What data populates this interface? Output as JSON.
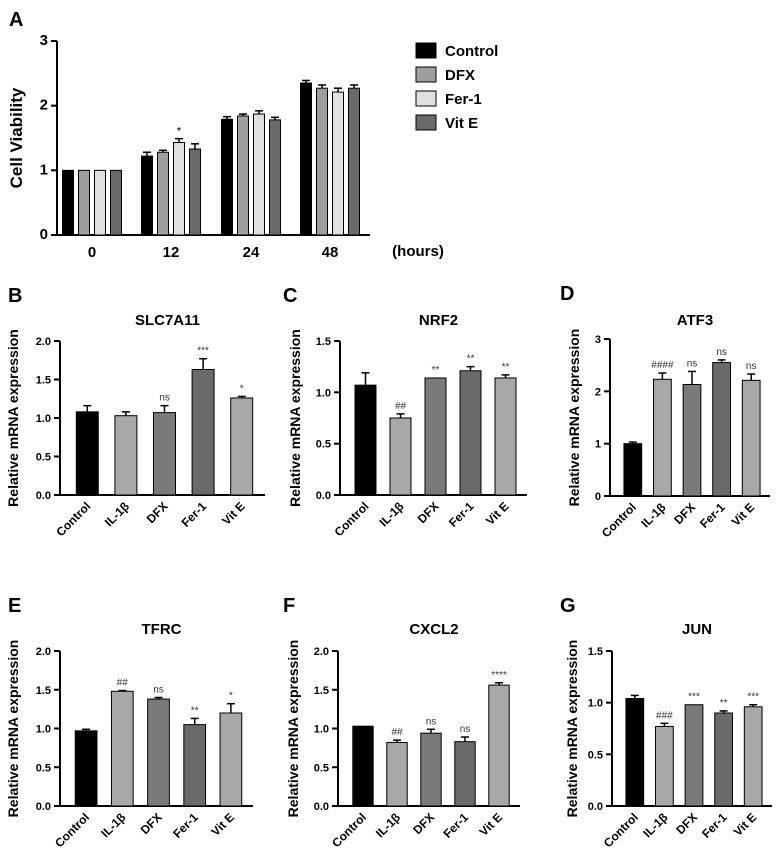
{
  "colors": {
    "control": "#000000",
    "dfx": "#9e9e9e",
    "fer1": "#e0e0e0",
    "vite": "#6a6a6a",
    "il1b": "#a8a8a8",
    "mid": "#7a7a7a",
    "axis": "#000000"
  },
  "chart_data": [
    {
      "id": "A",
      "panel_label": "A",
      "type": "bar",
      "title": "",
      "ylabel": "Cell Viability",
      "xlabel": "(hours)",
      "ylim": [
        0,
        3
      ],
      "yticks": [
        "0",
        "1",
        "2",
        "3"
      ],
      "categories": [
        "0",
        "12",
        "24",
        "48"
      ],
      "series": [
        {
          "name": "Control",
          "color_key": "control",
          "values": [
            1.0,
            1.22,
            1.79,
            2.35
          ],
          "errors": [
            0.0,
            0.06,
            0.04,
            0.04
          ],
          "sig": [
            "",
            "",
            "",
            ""
          ]
        },
        {
          "name": "DFX",
          "color_key": "dfx",
          "values": [
            1.0,
            1.28,
            1.84,
            2.27
          ],
          "errors": [
            0.0,
            0.03,
            0.03,
            0.05
          ],
          "sig": [
            "",
            "",
            "",
            ""
          ]
        },
        {
          "name": "Fer-1",
          "color_key": "fer1",
          "values": [
            1.0,
            1.43,
            1.87,
            2.21
          ],
          "errors": [
            0.0,
            0.06,
            0.05,
            0.06
          ],
          "sig": [
            "",
            "*",
            "",
            ""
          ]
        },
        {
          "name": "Vit E",
          "color_key": "vite",
          "values": [
            1.0,
            1.33,
            1.78,
            2.27
          ],
          "errors": [
            0.0,
            0.08,
            0.04,
            0.05
          ],
          "sig": [
            "",
            "",
            "",
            ""
          ]
        }
      ],
      "legend": [
        "Control",
        "DFX",
        "Fer-1",
        "Vit E"
      ]
    },
    {
      "id": "B",
      "panel_label": "B",
      "type": "bar",
      "title": "SLC7A11",
      "ylabel": "Relative mRNA expression",
      "ylim": [
        0,
        2.0
      ],
      "yticks": [
        "0.0",
        "0.5",
        "1.0",
        "1.5",
        "2.0"
      ],
      "categories": [
        "Control",
        "IL-1β",
        "DFX",
        "Fer-1",
        "Vit E"
      ],
      "values": [
        1.08,
        1.03,
        1.07,
        1.63,
        1.26
      ],
      "errors": [
        0.08,
        0.05,
        0.09,
        0.14,
        0.02
      ],
      "sig": [
        "",
        "",
        "ns",
        "***",
        "*"
      ],
      "colors": [
        "control",
        "il1b",
        "mid",
        "vite",
        "il1b"
      ]
    },
    {
      "id": "C",
      "panel_label": "C",
      "type": "bar",
      "title": "NRF2",
      "ylabel": "Relative mRNA expression",
      "ylim": [
        0,
        1.5
      ],
      "yticks": [
        "0.0",
        "0.5",
        "1.0",
        "1.5"
      ],
      "categories": [
        "Control",
        "IL-1β",
        "DFX",
        "Fer-1",
        "Vit E"
      ],
      "values": [
        1.07,
        0.75,
        1.14,
        1.21,
        1.14
      ],
      "errors": [
        0.12,
        0.04,
        0.0,
        0.04,
        0.03
      ],
      "sig": [
        "",
        "##",
        "**",
        "**",
        "**"
      ],
      "colors": [
        "control",
        "il1b",
        "mid",
        "vite",
        "il1b"
      ]
    },
    {
      "id": "D",
      "panel_label": "D",
      "type": "bar",
      "title": "ATF3",
      "ylabel": "Relative mRNA expression",
      "ylim": [
        0,
        3
      ],
      "yticks": [
        "0",
        "1",
        "2",
        "3"
      ],
      "categories": [
        "Control",
        "IL-1β",
        "DFX",
        "Fer-1",
        "Vit E"
      ],
      "values": [
        1.0,
        2.23,
        2.13,
        2.55,
        2.21
      ],
      "errors": [
        0.03,
        0.12,
        0.25,
        0.05,
        0.12
      ],
      "sig": [
        "",
        "####",
        "ns",
        "ns",
        "ns"
      ],
      "colors": [
        "control",
        "il1b",
        "mid",
        "vite",
        "il1b"
      ]
    },
    {
      "id": "E",
      "panel_label": "E",
      "type": "bar",
      "title": "TFRC",
      "ylabel": "Relative mRNA expression",
      "ylim": [
        0,
        2.0
      ],
      "yticks": [
        "0.0",
        "0.5",
        "1.0",
        "1.5",
        "2.0"
      ],
      "categories": [
        "Control",
        "IL-1β",
        "DFX",
        "Fer-1",
        "Vit E"
      ],
      "values": [
        0.97,
        1.48,
        1.38,
        1.05,
        1.2
      ],
      "errors": [
        0.02,
        0.01,
        0.02,
        0.08,
        0.12
      ],
      "sig": [
        "",
        "##",
        "ns",
        "**",
        "*"
      ],
      "colors": [
        "control",
        "il1b",
        "mid",
        "vite",
        "il1b"
      ]
    },
    {
      "id": "F",
      "panel_label": "F",
      "type": "bar",
      "title": "CXCL2",
      "ylabel": "Relative mRNA expression",
      "ylim": [
        0,
        2.0
      ],
      "yticks": [
        "0.0",
        "0.5",
        "1.0",
        "1.5",
        "2.0"
      ],
      "categories": [
        "Control",
        "IL-1β",
        "DFX",
        "Fer-1",
        "Vit E"
      ],
      "values": [
        1.03,
        0.82,
        0.94,
        0.83,
        1.56
      ],
      "errors": [
        0.0,
        0.03,
        0.05,
        0.06,
        0.03
      ],
      "sig": [
        "",
        "##",
        "ns",
        "ns",
        "****"
      ],
      "colors": [
        "control",
        "il1b",
        "mid",
        "vite",
        "il1b"
      ]
    },
    {
      "id": "G",
      "panel_label": "G",
      "type": "bar",
      "title": "JUN",
      "ylabel": "Relative mRNA expression",
      "ylim": [
        0,
        1.5
      ],
      "yticks": [
        "0.0",
        "0.5",
        "1.0",
        "1.5"
      ],
      "categories": [
        "Control",
        "IL-1β",
        "DFX",
        "Fer-1",
        "Vit E"
      ],
      "values": [
        1.04,
        0.77,
        0.98,
        0.9,
        0.96
      ],
      "errors": [
        0.03,
        0.03,
        0.0,
        0.02,
        0.02
      ],
      "sig": [
        "",
        "###",
        "***",
        "**",
        "***"
      ],
      "colors": [
        "control",
        "il1b",
        "mid",
        "vite",
        "il1b"
      ]
    }
  ]
}
